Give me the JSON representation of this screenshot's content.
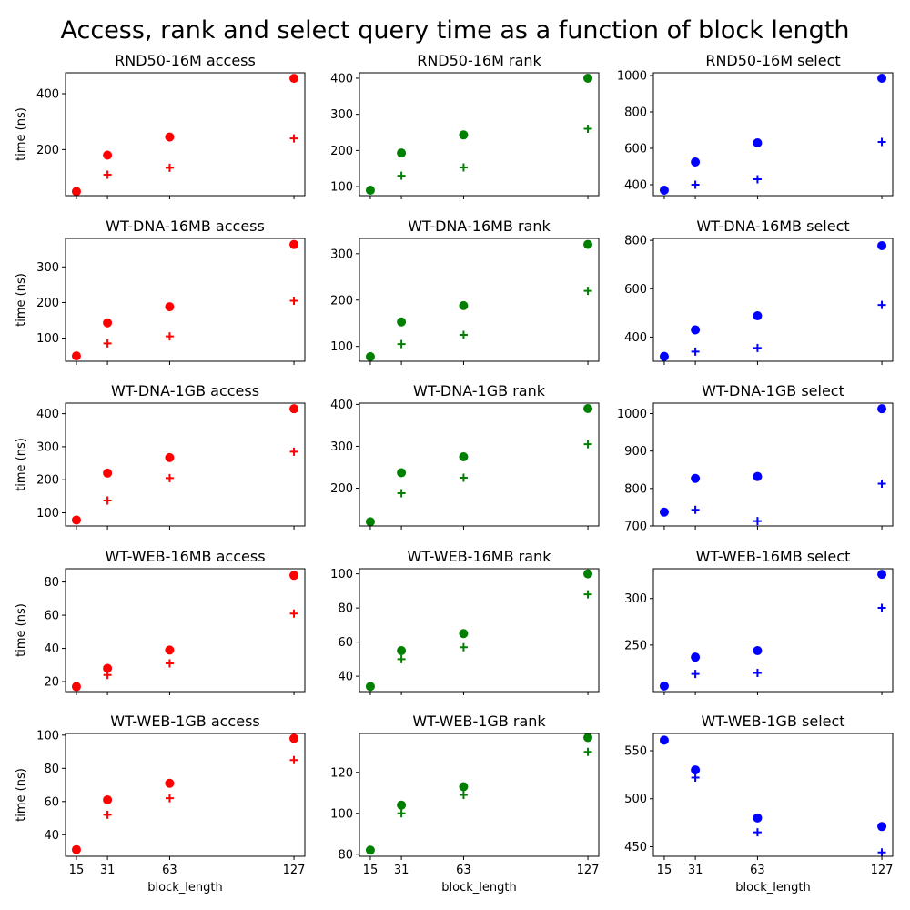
{
  "figure": {
    "suptitle": "Access, rank and select query time as a function of block length",
    "xlabel": "block_length",
    "ylabel": "time (ns)"
  },
  "chart_data": [
    {
      "type": "scatter",
      "title": "RND50-16M access",
      "color": "#ff0000",
      "x": [
        15,
        31,
        63,
        127
      ],
      "series": [
        {
          "marker": "circle",
          "values": [
            50,
            180,
            245,
            455
          ]
        },
        {
          "marker": "plus",
          "values": [
            50,
            110,
            135,
            240
          ]
        }
      ],
      "yticks": [
        200,
        400
      ],
      "ylim": [
        35,
        475
      ]
    },
    {
      "type": "scatter",
      "title": "RND50-16M rank",
      "color": "#008000",
      "x": [
        15,
        31,
        63,
        127
      ],
      "series": [
        {
          "marker": "circle",
          "values": [
            90,
            193,
            243,
            400
          ]
        },
        {
          "marker": "plus",
          "values": [
            90,
            130,
            153,
            260
          ]
        }
      ],
      "yticks": [
        100,
        200,
        300,
        400
      ],
      "ylim": [
        75,
        415
      ]
    },
    {
      "type": "scatter",
      "title": "RND50-16M select",
      "color": "#0000ff",
      "x": [
        15,
        31,
        63,
        127
      ],
      "series": [
        {
          "marker": "circle",
          "values": [
            370,
            525,
            630,
            985
          ]
        },
        {
          "marker": "plus",
          "values": [
            370,
            400,
            430,
            635
          ]
        }
      ],
      "yticks": [
        400,
        600,
        800,
        1000
      ],
      "ylim": [
        340,
        1015
      ]
    },
    {
      "type": "scatter",
      "title": "WT-DNA-16MB access",
      "color": "#ff0000",
      "x": [
        15,
        31,
        63,
        127
      ],
      "series": [
        {
          "marker": "circle",
          "values": [
            50,
            143,
            188,
            363
          ]
        },
        {
          "marker": "plus",
          "values": [
            50,
            85,
            105,
            205
          ]
        }
      ],
      "yticks": [
        100,
        200,
        300
      ],
      "ylim": [
        35,
        380
      ]
    },
    {
      "type": "scatter",
      "title": "WT-DNA-16MB rank",
      "color": "#008000",
      "x": [
        15,
        31,
        63,
        127
      ],
      "series": [
        {
          "marker": "circle",
          "values": [
            78,
            153,
            188,
            320
          ]
        },
        {
          "marker": "plus",
          "values": [
            78,
            105,
            125,
            220
          ]
        }
      ],
      "yticks": [
        100,
        200,
        300
      ],
      "ylim": [
        68,
        333
      ]
    },
    {
      "type": "scatter",
      "title": "WT-DNA-16MB select",
      "color": "#0000ff",
      "x": [
        15,
        31,
        63,
        127
      ],
      "series": [
        {
          "marker": "circle",
          "values": [
            320,
            430,
            488,
            778
          ]
        },
        {
          "marker": "plus",
          "values": [
            320,
            340,
            355,
            533
          ]
        }
      ],
      "yticks": [
        400,
        600,
        800
      ],
      "ylim": [
        300,
        808
      ]
    },
    {
      "type": "scatter",
      "title": "WT-DNA-1GB access",
      "color": "#ff0000",
      "x": [
        15,
        31,
        63,
        127
      ],
      "series": [
        {
          "marker": "circle",
          "values": [
            78,
            220,
            267,
            415
          ]
        },
        {
          "marker": "plus",
          "values": [
            78,
            137,
            205,
            285
          ]
        }
      ],
      "yticks": [
        100,
        200,
        300,
        400
      ],
      "ylim": [
        60,
        432
      ]
    },
    {
      "type": "scatter",
      "title": "WT-DNA-1GB rank",
      "color": "#008000",
      "x": [
        15,
        31,
        63,
        127
      ],
      "series": [
        {
          "marker": "circle",
          "values": [
            120,
            237,
            275,
            390
          ]
        },
        {
          "marker": "plus",
          "values": [
            120,
            188,
            225,
            305
          ]
        }
      ],
      "yticks": [
        200,
        300,
        400
      ],
      "ylim": [
        110,
        403
      ]
    },
    {
      "type": "scatter",
      "title": "WT-DNA-1GB select",
      "color": "#0000ff",
      "x": [
        15,
        31,
        63,
        127
      ],
      "series": [
        {
          "marker": "circle",
          "values": [
            737,
            827,
            832,
            1013
          ]
        },
        {
          "marker": "plus",
          "values": [
            737,
            743,
            713,
            813
          ]
        }
      ],
      "yticks": [
        700,
        800,
        900,
        1000
      ],
      "ylim": [
        700,
        1028
      ]
    },
    {
      "type": "scatter",
      "title": "WT-WEB-16MB access",
      "color": "#ff0000",
      "x": [
        15,
        31,
        63,
        127
      ],
      "series": [
        {
          "marker": "circle",
          "values": [
            17,
            28,
            39,
            84
          ]
        },
        {
          "marker": "plus",
          "values": [
            17,
            24,
            31,
            61
          ]
        }
      ],
      "yticks": [
        20,
        40,
        60,
        80
      ],
      "ylim": [
        14,
        88
      ]
    },
    {
      "type": "scatter",
      "title": "WT-WEB-16MB rank",
      "color": "#008000",
      "x": [
        15,
        31,
        63,
        127
      ],
      "series": [
        {
          "marker": "circle",
          "values": [
            34,
            55,
            65,
            100
          ]
        },
        {
          "marker": "plus",
          "values": [
            34,
            50,
            57,
            88
          ]
        }
      ],
      "yticks": [
        40,
        60,
        80,
        100
      ],
      "ylim": [
        31,
        103
      ]
    },
    {
      "type": "scatter",
      "title": "WT-WEB-16MB select",
      "color": "#0000ff",
      "x": [
        15,
        31,
        63,
        127
      ],
      "series": [
        {
          "marker": "circle",
          "values": [
            206,
            237,
            244,
            326
          ]
        },
        {
          "marker": "plus",
          "values": [
            206,
            219,
            220,
            290
          ]
        }
      ],
      "yticks": [
        250,
        300
      ],
      "ylim": [
        200,
        332
      ]
    },
    {
      "type": "scatter",
      "title": "WT-WEB-1GB access",
      "color": "#ff0000",
      "x": [
        15,
        31,
        63,
        127
      ],
      "series": [
        {
          "marker": "circle",
          "values": [
            31,
            61,
            71,
            98
          ]
        },
        {
          "marker": "plus",
          "values": [
            31,
            52,
            62,
            85
          ]
        }
      ],
      "yticks": [
        40,
        60,
        80,
        100
      ],
      "ylim": [
        27,
        101
      ]
    },
    {
      "type": "scatter",
      "title": "WT-WEB-1GB rank",
      "color": "#008000",
      "x": [
        15,
        31,
        63,
        127
      ],
      "series": [
        {
          "marker": "circle",
          "values": [
            82,
            104,
            113,
            137
          ]
        },
        {
          "marker": "plus",
          "values": [
            82,
            100,
            109,
            130
          ]
        }
      ],
      "yticks": [
        80,
        100,
        120
      ],
      "ylim": [
        79,
        139
      ]
    },
    {
      "type": "scatter",
      "title": "WT-WEB-1GB select",
      "color": "#0000ff",
      "x": [
        15,
        31,
        63,
        127
      ],
      "series": [
        {
          "marker": "circle",
          "values": [
            561,
            530,
            480,
            471
          ]
        },
        {
          "marker": "plus",
          "values": [
            561,
            522,
            465,
            444
          ]
        }
      ],
      "yticks": [
        450,
        500,
        550
      ],
      "ylim": [
        440,
        568
      ]
    }
  ],
  "xaxis": {
    "ticks": [
      15,
      31,
      63,
      127
    ],
    "xlim": [
      9.4,
      132.6
    ]
  }
}
